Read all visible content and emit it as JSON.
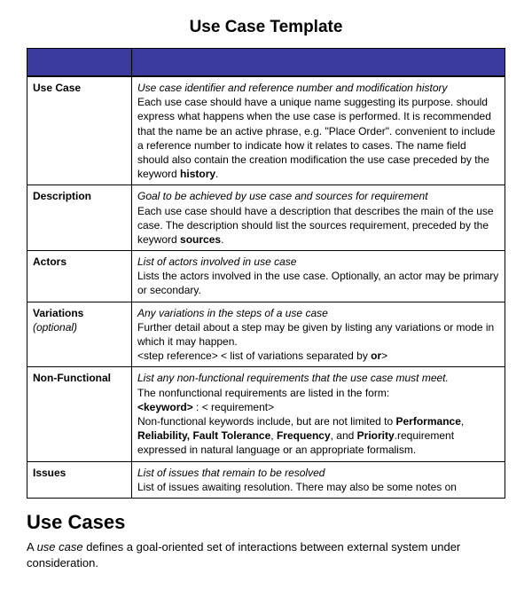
{
  "title": "Use Case Template",
  "header_color": "#3b3b9e",
  "rows": [
    {
      "label": "Use Case",
      "italic": "Use case identifier and reference number and modification history",
      "body_html": "Each use case should have a unique name suggesting its purpose. should express what happens when the use case is performed. It is recommended that the name be an active phrase, e.g. \"Place Order\". convenient to include a reference number to indicate how it relates to cases. The name field should also contain the creation modification the use case preceded by the keyword <b>history</b>."
    },
    {
      "label": "Description",
      "italic": "Goal to be achieved by use case and sources for requirement",
      "body_html": "Each use case should have a description that describes the main of the use case. The description should list the sources requirement, preceded by the keyword <b>sources</b>."
    },
    {
      "label": "Actors",
      "italic": "List of actors involved in use case",
      "body_html": "Lists the actors involved in the use case. Optionally, an actor may be primary or secondary."
    },
    {
      "label": "Variations",
      "label_extra": "(optional)",
      "italic": "Any variations in the steps of a use case",
      "body_html": "Further detail about a step may be given by listing any variations or mode in which it may happen.<br>&lt;step reference&gt; &lt; list of variations separated by <b>or</b>&gt;"
    },
    {
      "label": "Non-Functional",
      "italic": "List any non-functional requirements that the use case must meet.",
      "body_html": "The nonfunctional requirements are listed in the form:<br><b>&lt;keyword&gt;</b> : &lt; requirement&gt;<br>Non-functional keywords include, but are not limited to <b>Performance</b>, <b>Reliability, Fault Tolerance</b>, <b>Frequency</b>, and <b>Priority</b>.requirement expressed in natural language or an appropriate formalism."
    },
    {
      "label": "Issues",
      "italic": "List of issues that remain to be resolved",
      "body_html": "List of issues awaiting resolution. There may also be some notes on"
    }
  ],
  "section_heading": "Use Cases",
  "section_para_html": "A <i>use case</i> defines a goal-oriented set of interactions between external system under consideration."
}
